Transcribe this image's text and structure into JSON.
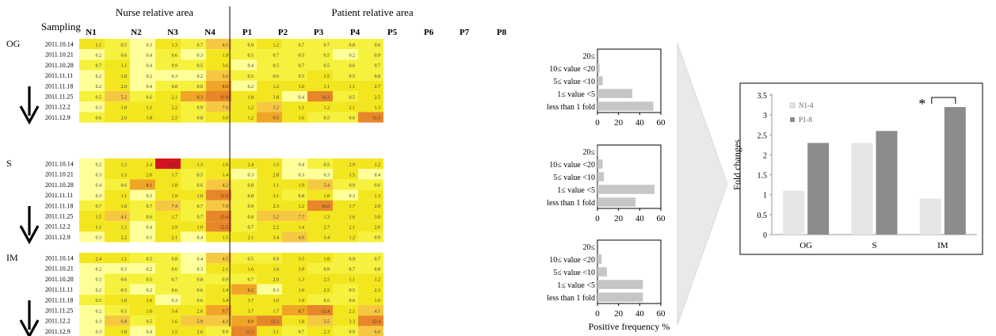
{
  "heatmap": {
    "header": {
      "sampling_label": "Sampling",
      "nurse_area_label": "Nurse relative area",
      "patient_area_label": "Patient relative area"
    },
    "columns": [
      "N1",
      "N2",
      "N3",
      "N4",
      "P1",
      "P2",
      "P3",
      "P4",
      "P5",
      "P6",
      "P7",
      "P8"
    ],
    "palette": {
      "pale": "#ffff99",
      "light": "#f5f13c",
      "yellow": "#f3e61e",
      "orange": "#f6c842",
      "deep_orange": "#f0a526",
      "dark_orange": "#e8862a",
      "red": "#d2151f"
    },
    "groups": [
      {
        "label": "OG",
        "dates": [
          "2011.10.14",
          "2011.10.21",
          "2011.10.28",
          "2011.11.11",
          "2011.11.18",
          "2011.11.25",
          "2011.12.2",
          "2011.12.9"
        ],
        "values": [
          [
            "1.1",
            "0.5",
            "0.3",
            "1.3",
            "0.7",
            "4.1",
            "0.8",
            "1.2",
            "0.7",
            "0.7",
            "0.8",
            "0.6"
          ],
          [
            "0.2",
            "0.6",
            "0.4",
            "0.6",
            "0.3",
            "1.9",
            "0.5",
            "0.7",
            "0.5",
            "0.5",
            "0.2",
            "0.9"
          ],
          [
            "0.7",
            "1.1",
            "0.4",
            "0.9",
            "0.5",
            "3.6",
            "0.4",
            "0.5",
            "0.7",
            "0.5",
            "0.6",
            "0.7"
          ],
          [
            "0.2",
            "1.0",
            "0.2",
            "0.3",
            "0.2",
            "5.6",
            "0.5",
            "0.6",
            "0.5",
            "1.5",
            "0.5",
            "0.8"
          ],
          [
            "0.2",
            "2.0",
            "0.4",
            "0.8",
            "0.6",
            "8.0",
            "0.2",
            "1.2",
            "1.0",
            "1.1",
            "1.1",
            "2.7"
          ],
          [
            "0.5",
            "5.2",
            "0.6",
            "2.1",
            "8.3",
            "11.8",
            "1.8",
            "3.8",
            "0.4",
            "16.3",
            "0.5",
            "2.5"
          ],
          [
            "0.3",
            "1.8",
            "1.1",
            "2.2",
            "0.9",
            "7.6",
            "1.2",
            "5.2",
            "1.1",
            "1.2",
            "2.1",
            "1.3"
          ],
          [
            "0.6",
            "2.6",
            "1.8",
            "2.5",
            "0.8",
            "3.0",
            "1.2",
            "9.5",
            "1.6",
            "0.5",
            "0.6",
            "11.5"
          ]
        ]
      },
      {
        "label": "S",
        "dates": [
          "2011.10.14",
          "2011.10.21",
          "2011.10.28",
          "2011.11.11",
          "2011.11.18",
          "2011.11.25",
          "2011.12.2",
          "2011.12.9"
        ],
        "values": [
          [
            "0.2",
            "1.3",
            "2.4",
            "24.6",
            "1.3",
            "1.6",
            "2.4",
            "1.5",
            "0.4",
            "0.5",
            "2.9",
            "1.2"
          ],
          [
            "0.3",
            "1.3",
            "2.0",
            "1.7",
            "0.5",
            "1.4",
            "0.3",
            "2.8",
            "0.3",
            "0.3",
            "1.5",
            "0.4"
          ],
          [
            "0.4",
            "0.6",
            "8.1",
            "1.8",
            "0.6",
            "4.2",
            "0.8",
            "1.1",
            "1.9",
            "5.4",
            "0.9",
            "0.6"
          ],
          [
            "0.3",
            "1.1",
            "0.3",
            "1.9",
            "1.0",
            "11.6",
            "0.8",
            "3.1",
            "0.8",
            "1.8",
            "0.3",
            "1.3"
          ],
          [
            "0.7",
            "1.6",
            "0.7",
            "7.4",
            "0.7",
            "7.9",
            "0.9",
            "2.3",
            "1.2",
            "16.6",
            "1.7",
            "2.0"
          ],
          [
            "1.5",
            "4.1",
            "0.6",
            "1.7",
            "0.7",
            "15.4",
            "0.8",
            "5.2",
            "7.7",
            "1.3",
            "1.6",
            "3.0"
          ],
          [
            "1.1",
            "1.2",
            "0.4",
            "2.9",
            "1.0",
            "12.5",
            "0.7",
            "2.2",
            "1.4",
            "2.7",
            "2.1",
            "2.6"
          ],
          [
            "0.3",
            "2.2",
            "0.1",
            "2.1",
            "0.4",
            "1.5",
            "2.1",
            "3.4",
            "4.0",
            "3.4",
            "1.2",
            "0.9"
          ]
        ]
      },
      {
        "label": "IM",
        "dates": [
          "2011.10.14",
          "2011.10.21",
          "2011.10.28",
          "2011.11.11",
          "2011.11.18",
          "2011.11.25",
          "2011.12.2",
          "2011.12.9"
        ],
        "values": [
          [
            "2.4",
            "1.1",
            "0.5",
            "0.8",
            "0.4",
            "4.5",
            "0.5",
            "0.9",
            "3.5",
            "1.8",
            "0.9",
            "0.7"
          ],
          [
            "0.2",
            "0.3",
            "0.2",
            "0.6",
            "0.3",
            "2.1",
            "1.6",
            "1.6",
            "3.9",
            "0.9",
            "0.7",
            "0.8"
          ],
          [
            "0.3",
            "0.6",
            "0.5",
            "0.7",
            "0.8",
            "0.9",
            "0.7",
            "2.0",
            "1.3",
            "2.5",
            "1.1",
            "1.2"
          ],
          [
            "0.2",
            "0.5",
            "0.2",
            "0.6",
            "0.6",
            "1.4",
            "8.2",
            "0.3",
            "1.0",
            "2.5",
            "0.5",
            "2.3"
          ],
          [
            "0.5",
            "1.0",
            "1.0",
            "0.3",
            "0.6",
            "3.4",
            "3.7",
            "1.0",
            "1.9",
            "0.5",
            "0.6",
            "1.0"
          ],
          [
            "0.2",
            "0.5",
            "1.0",
            "3.4",
            "2.6",
            "9.7",
            "3.7",
            "1.7",
            "8.7",
            "12.4",
            "2.1",
            "4.1"
          ],
          [
            "0.3",
            "6.9",
            "0.5",
            "1.6",
            "5.9",
            "4.3",
            "8.9",
            "12.3",
            "1.8",
            "5.5",
            "3.3",
            "12.4"
          ],
          [
            "0.3",
            "1.8",
            "0.4",
            "1.5",
            "2.6",
            "0.9",
            "11.3",
            "3.1",
            "0.7",
            "2.3",
            "0.9",
            "6.0"
          ]
        ]
      }
    ]
  },
  "chart_data": [
    {
      "type": "bar",
      "orientation": "horizontal",
      "panel": "OG",
      "categories": [
        "20≤",
        "10≤ value <20",
        "5≤ value <10",
        "1≤ value <5",
        "less than 1 fold"
      ],
      "values": [
        0,
        2,
        5,
        33,
        53
      ],
      "xlim": [
        0,
        60
      ],
      "xticks": [
        "0",
        "20",
        "40",
        "60"
      ],
      "bar_color": "#c6c6c6"
    },
    {
      "type": "bar",
      "orientation": "horizontal",
      "panel": "S",
      "categories": [
        "20≤",
        "10≤ value <20",
        "5≤ value <10",
        "1≤ value <5",
        "less than 1 fold"
      ],
      "values": [
        1,
        5,
        6,
        54,
        36
      ],
      "xlim": [
        0,
        60
      ],
      "xticks": [
        "0",
        "20",
        "40",
        "60"
      ],
      "bar_color": "#c6c6c6"
    },
    {
      "type": "bar",
      "orientation": "horizontal",
      "panel": "IM",
      "categories": [
        "20≤",
        "10≤ value <20",
        "5≤ value <10",
        "1≤ value <5",
        "less than 1 fold"
      ],
      "values": [
        0,
        4,
        9,
        43,
        43
      ],
      "xlim": [
        0,
        60
      ],
      "xticks": [
        "0",
        "20",
        "40",
        "60"
      ],
      "xlabel": "Positive frequency %",
      "bar_color": "#c6c6c6"
    },
    {
      "type": "bar",
      "categories": [
        "OG",
        "S",
        "IM"
      ],
      "series": [
        {
          "name": "N1-4",
          "values": [
            1.1,
            2.3,
            0.9
          ],
          "color": "#e6e6e6"
        },
        {
          "name": "P1-8",
          "values": [
            2.3,
            2.6,
            3.2
          ],
          "color": "#8c8c8c"
        }
      ],
      "ylabel": "Fold changes",
      "ylim": [
        0,
        3.5
      ],
      "yticks": [
        "0",
        "0.5",
        "1",
        "1.5",
        "2",
        "2.5",
        "3",
        "3.5"
      ],
      "legend": "top-left",
      "annotation": "*"
    }
  ]
}
